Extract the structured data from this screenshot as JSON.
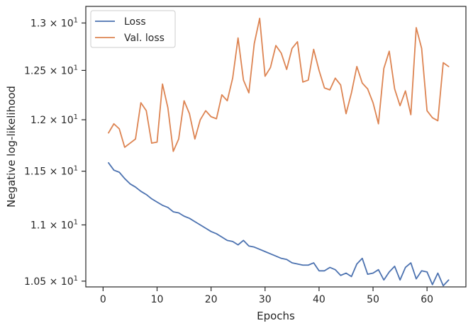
{
  "chart_data": {
    "type": "line",
    "xlabel": "Epochs",
    "ylabel": "Negative log-likelihood",
    "yscale": "log",
    "xlim": [
      -3.2,
      67.2
    ],
    "ylim": [
      10.45,
      13.18
    ],
    "xticks": [
      0,
      10,
      20,
      30,
      40,
      50,
      60
    ],
    "yticks": [
      {
        "value": 10.5,
        "mantissa": "1.05",
        "exp": "1"
      },
      {
        "value": 11.0,
        "mantissa": "1.1",
        "exp": "1"
      },
      {
        "value": 11.5,
        "mantissa": "1.15",
        "exp": "1"
      },
      {
        "value": 12.0,
        "mantissa": "1.2",
        "exp": "1"
      },
      {
        "value": 12.5,
        "mantissa": "1.25",
        "exp": "1"
      },
      {
        "value": 13.0,
        "mantissa": "1.3",
        "exp": "1"
      }
    ],
    "grid": false,
    "legend_position": "upper-left",
    "x": [
      1,
      2,
      3,
      4,
      5,
      6,
      7,
      8,
      9,
      10,
      11,
      12,
      13,
      14,
      15,
      16,
      17,
      18,
      19,
      20,
      21,
      22,
      23,
      24,
      25,
      26,
      27,
      28,
      29,
      30,
      31,
      32,
      33,
      34,
      35,
      36,
      37,
      38,
      39,
      40,
      41,
      42,
      43,
      44,
      45,
      46,
      47,
      48,
      49,
      50,
      51,
      52,
      53,
      54,
      55,
      56,
      57,
      58,
      59,
      60,
      61,
      62,
      63,
      64
    ],
    "series": [
      {
        "name": "Loss",
        "color": "#4c72b0",
        "values": [
          11.58,
          11.51,
          11.49,
          11.43,
          11.38,
          11.35,
          11.31,
          11.28,
          11.24,
          11.21,
          11.18,
          11.16,
          11.12,
          11.11,
          11.08,
          11.06,
          11.03,
          11.0,
          10.97,
          10.94,
          10.92,
          10.89,
          10.86,
          10.85,
          10.82,
          10.86,
          10.81,
          10.8,
          10.78,
          10.76,
          10.74,
          10.72,
          10.7,
          10.69,
          10.66,
          10.65,
          10.64,
          10.64,
          10.66,
          10.59,
          10.59,
          10.62,
          10.6,
          10.55,
          10.57,
          10.54,
          10.65,
          10.7,
          10.56,
          10.57,
          10.6,
          10.51,
          10.58,
          10.63,
          10.51,
          10.62,
          10.66,
          10.52,
          10.59,
          10.58,
          10.47,
          10.57,
          10.46,
          10.51
        ]
      },
      {
        "name": "Val. loss",
        "color": "#dd8452",
        "values": [
          11.87,
          11.96,
          11.91,
          11.73,
          11.77,
          11.81,
          12.17,
          12.09,
          11.77,
          11.78,
          12.36,
          12.12,
          11.69,
          11.81,
          12.19,
          12.06,
          11.81,
          12.0,
          12.09,
          12.03,
          12.01,
          12.25,
          12.19,
          12.42,
          12.84,
          12.4,
          12.27,
          12.78,
          13.05,
          12.44,
          12.53,
          12.76,
          12.68,
          12.51,
          12.73,
          12.8,
          12.38,
          12.4,
          12.72,
          12.5,
          12.32,
          12.3,
          12.42,
          12.35,
          12.06,
          12.27,
          12.54,
          12.37,
          12.31,
          12.17,
          11.96,
          12.52,
          12.7,
          12.31,
          12.14,
          12.29,
          12.05,
          12.95,
          12.73,
          12.09,
          12.02,
          11.99,
          12.58,
          12.54
        ]
      }
    ]
  }
}
